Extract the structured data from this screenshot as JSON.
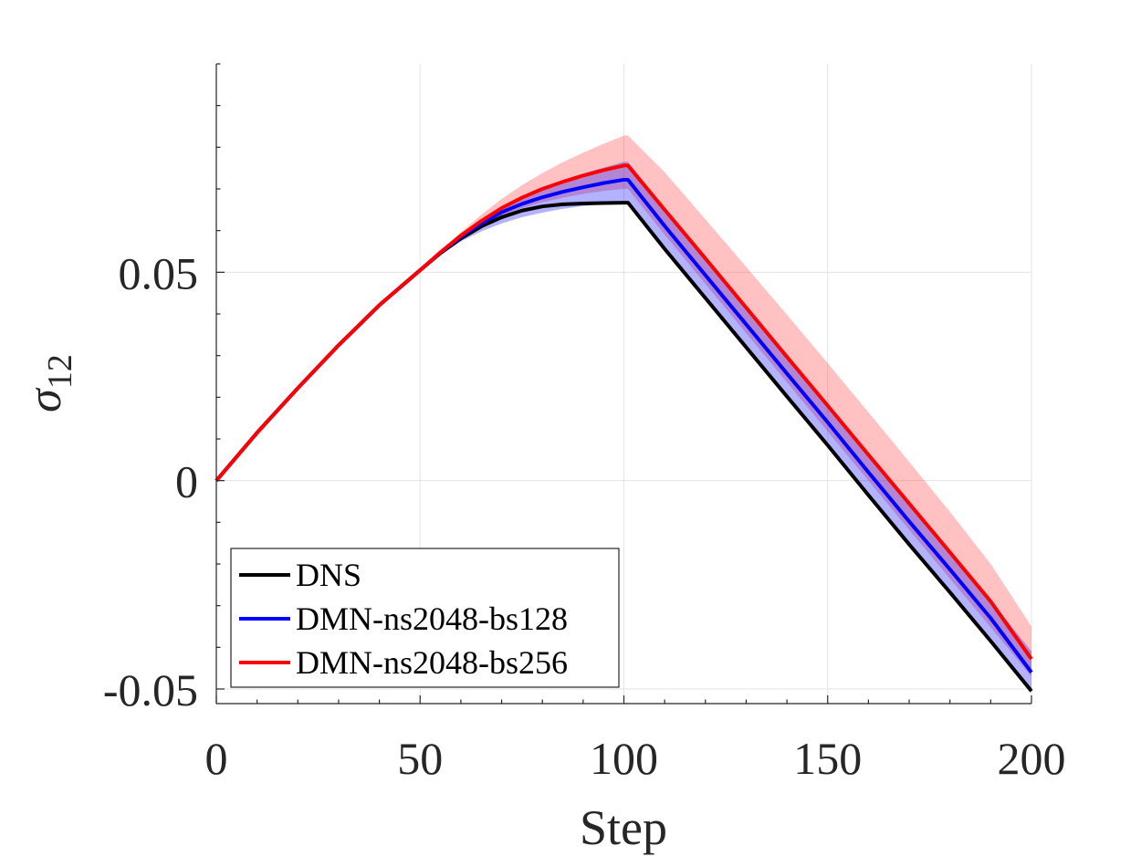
{
  "chart_data": {
    "type": "line",
    "xlabel": "Step",
    "ylabel": "σ",
    "ylabel_sub": "12",
    "xlim": [
      0,
      200
    ],
    "ylim": [
      -0.0535,
      0.1
    ],
    "xticks": [
      0,
      50,
      100,
      150,
      200
    ],
    "xtick_labels": [
      "0",
      "50",
      "100",
      "150",
      "200"
    ],
    "yticks": [
      -0.05,
      0,
      0.05
    ],
    "ytick_labels": [
      "-0.05",
      "0",
      "0.05"
    ],
    "grid": true,
    "legend_position": "bottom-left",
    "x": [
      0,
      10,
      20,
      30,
      40,
      50,
      55,
      60,
      65,
      70,
      75,
      80,
      85,
      90,
      95,
      100,
      101,
      110,
      120,
      130,
      140,
      150,
      160,
      170,
      180,
      190,
      200
    ],
    "series": [
      {
        "name": "DNS",
        "color": "#000000",
        "values": [
          0,
          0.0115,
          0.0222,
          0.0325,
          0.0421,
          0.0505,
          0.0546,
          0.0581,
          0.061,
          0.0632,
          0.0648,
          0.0658,
          0.0663,
          0.0665,
          0.0666,
          0.0667,
          0.0667,
          0.0556,
          0.0438,
          0.032,
          0.0202,
          0.0085,
          -0.0035,
          -0.0153,
          -0.0268,
          -0.0385,
          -0.0505
        ]
      },
      {
        "name": "DMN-ns2048-bs128",
        "color": "#0000ff",
        "band_color": "#0000ff",
        "values": [
          0,
          0.0115,
          0.0222,
          0.0325,
          0.0421,
          0.0505,
          0.0547,
          0.0585,
          0.0617,
          0.0644,
          0.0664,
          0.068,
          0.0693,
          0.0704,
          0.0714,
          0.0722,
          0.0722,
          0.0611,
          0.0493,
          0.0375,
          0.0257,
          0.014,
          0.002,
          -0.0098,
          -0.0213,
          -0.033,
          -0.046
        ],
        "band_lower": [
          0,
          0.0115,
          0.0222,
          0.0325,
          0.0421,
          0.0505,
          0.0543,
          0.0574,
          0.0598,
          0.0617,
          0.0632,
          0.0643,
          0.0652,
          0.0659,
          0.0664,
          0.0667,
          0.0667,
          0.0556,
          0.0438,
          0.032,
          0.0202,
          0.0085,
          -0.0035,
          -0.0153,
          -0.0268,
          -0.0385,
          -0.0505
        ],
        "band_upper": [
          0,
          0.0115,
          0.0222,
          0.0325,
          0.0421,
          0.0505,
          0.0549,
          0.059,
          0.0626,
          0.0657,
          0.0682,
          0.0703,
          0.0721,
          0.0737,
          0.0751,
          0.0765,
          0.0765,
          0.0654,
          0.0536,
          0.0418,
          0.03,
          0.0183,
          0.0063,
          -0.0055,
          -0.017,
          -0.0287,
          -0.041
        ]
      },
      {
        "name": "DMN-ns2048-bs256",
        "color": "#ff0000",
        "band_color": "#ff3333",
        "values": [
          0,
          0.0115,
          0.0222,
          0.0325,
          0.0421,
          0.0505,
          0.0548,
          0.0588,
          0.0623,
          0.0654,
          0.0679,
          0.07,
          0.0717,
          0.0732,
          0.0745,
          0.0756,
          0.0756,
          0.065,
          0.0533,
          0.0415,
          0.0297,
          0.018,
          0.0062,
          -0.0055,
          -0.0172,
          -0.029,
          -0.0428
        ],
        "band_lower": [
          0,
          0.0115,
          0.0222,
          0.0325,
          0.0421,
          0.0505,
          0.0547,
          0.0583,
          0.0612,
          0.0636,
          0.0654,
          0.0668,
          0.0679,
          0.0688,
          0.0695,
          0.07,
          0.07,
          0.059,
          0.0472,
          0.0354,
          0.0236,
          0.0118,
          0.0,
          -0.0118,
          -0.0235,
          -0.0352,
          -0.047
        ],
        "band_upper": [
          0,
          0.0115,
          0.0222,
          0.0325,
          0.0421,
          0.0505,
          0.0551,
          0.0596,
          0.0638,
          0.0676,
          0.0709,
          0.0738,
          0.0764,
          0.0787,
          0.0808,
          0.0828,
          0.0828,
          0.074,
          0.0627,
          0.0513,
          0.0398,
          0.0282,
          0.0164,
          0.0045,
          -0.0075,
          -0.02,
          -0.035
        ]
      }
    ]
  }
}
